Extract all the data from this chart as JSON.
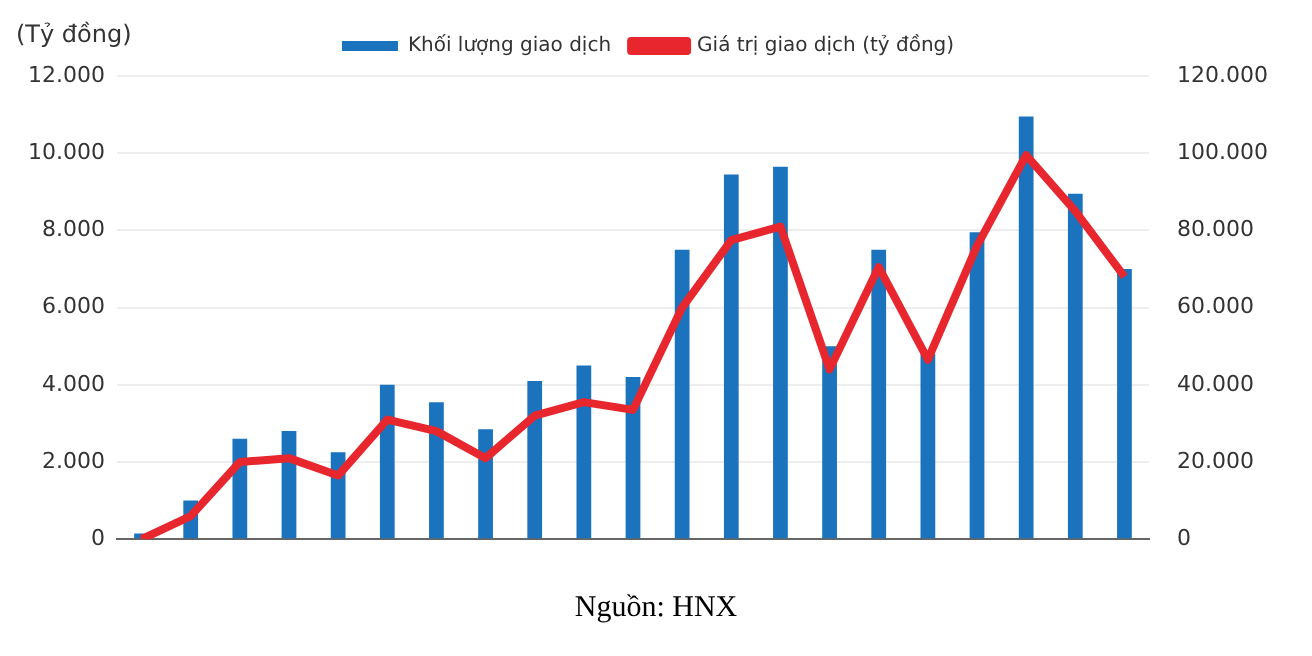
{
  "chart_data": {
    "type": "bar",
    "ylabel": "(Tỷ đồng)",
    "categories": [
      null,
      null,
      null,
      null,
      null,
      null,
      null,
      null,
      null,
      null,
      null,
      null,
      null,
      null,
      null,
      null,
      null,
      null,
      null,
      null,
      null
    ],
    "series": [
      {
        "name": "Khối lượng giao dịch",
        "color": "#1a73bc",
        "values": [
          150,
          1000,
          2600,
          2800,
          2250,
          4000,
          3550,
          2850,
          4100,
          4500,
          4200,
          7500,
          9450,
          9650,
          5000,
          7500,
          4800,
          7950,
          10950,
          8950,
          7000
        ]
      },
      {
        "name": "Giá trị giao dịch (tỷ đồng)",
        "type": "line",
        "axis": "y2",
        "color": "#e8262d",
        "values": [
          0,
          6000,
          20000,
          21000,
          16500,
          31000,
          28000,
          21000,
          32000,
          35500,
          33500,
          60000,
          77500,
          81000,
          44000,
          70500,
          46500,
          76000,
          99500,
          85000,
          68000
        ]
      }
    ],
    "ylim": [
      0,
      12000
    ],
    "yticks": [
      {
        "value": 0,
        "label": "0"
      },
      {
        "value": 2000,
        "label": "2.000"
      },
      {
        "value": 4000,
        "label": "4.000"
      },
      {
        "value": 6000,
        "label": "6.000"
      },
      {
        "value": 8000,
        "label": "8.000"
      },
      {
        "value": 10000,
        "label": "10.000"
      },
      {
        "value": 12000,
        "label": "12.000"
      }
    ],
    "y2lim": [
      0,
      120000
    ],
    "y2ticks": [
      {
        "value": 0,
        "label": "0"
      },
      {
        "value": 20000,
        "label": "20.000"
      },
      {
        "value": 40000,
        "label": "40.000"
      },
      {
        "value": 60000,
        "label": "60.000"
      },
      {
        "value": 80000,
        "label": "80.000"
      },
      {
        "value": 100000,
        "label": "100.000"
      },
      {
        "value": 120000,
        "label": "120.000"
      }
    ],
    "grid": "y",
    "legend": "top",
    "marker": "none",
    "line_style": "solid",
    "annotations": [
      "Nguồn: HNX"
    ]
  }
}
